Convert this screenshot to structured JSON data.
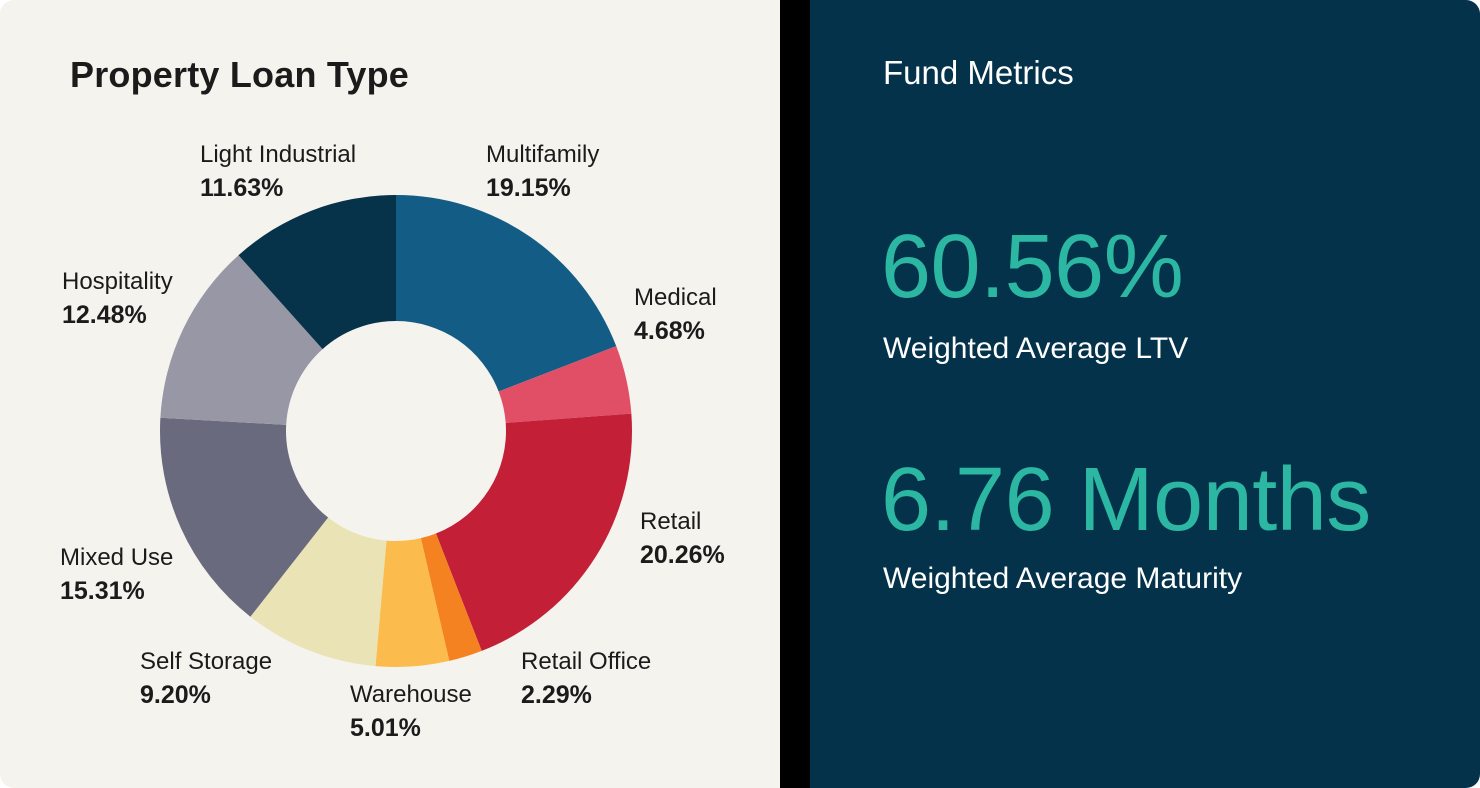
{
  "left_panel": {
    "title": "Property Loan Type",
    "background": "#f5f3ee"
  },
  "divider_color": "#000000",
  "right_panel": {
    "title": "Fund Metrics",
    "background": "#04324a",
    "accent_color": "#2cb7a2",
    "text_color": "#ffffff",
    "metrics": [
      {
        "value": "60.56%",
        "label": "Weighted Average LTV"
      },
      {
        "value": "6.76 Months",
        "label": "Weighted Average Maturity"
      }
    ]
  },
  "chart_data": {
    "type": "pie",
    "title": "Property Loan Type",
    "donut": true,
    "start_angle_deg": 0,
    "direction": "clockwise",
    "legend_position": "around-slices",
    "series": [
      {
        "name": "Multifamily",
        "value": 19.15,
        "label": "19.15%",
        "color": "#135c85"
      },
      {
        "name": "Medical",
        "value": 4.68,
        "label": "4.68%",
        "color": "#e14f67"
      },
      {
        "name": "Retail",
        "value": 20.26,
        "label": "20.26%",
        "color": "#c32038"
      },
      {
        "name": "Retail Office",
        "value": 2.29,
        "label": "2.29%",
        "color": "#f58220"
      },
      {
        "name": "Warehouse",
        "value": 5.01,
        "label": "5.01%",
        "color": "#fbbc4d"
      },
      {
        "name": "Self Storage",
        "value": 9.2,
        "label": "9.20%",
        "color": "#eae3b5"
      },
      {
        "name": "Mixed Use",
        "value": 15.31,
        "label": "15.31%",
        "color": "#696a7d"
      },
      {
        "name": "Hospitality",
        "value": 12.48,
        "label": "12.48%",
        "color": "#9897a5"
      },
      {
        "name": "Light Industrial",
        "value": 11.63,
        "label": "11.63%",
        "color": "#06324a"
      }
    ]
  }
}
